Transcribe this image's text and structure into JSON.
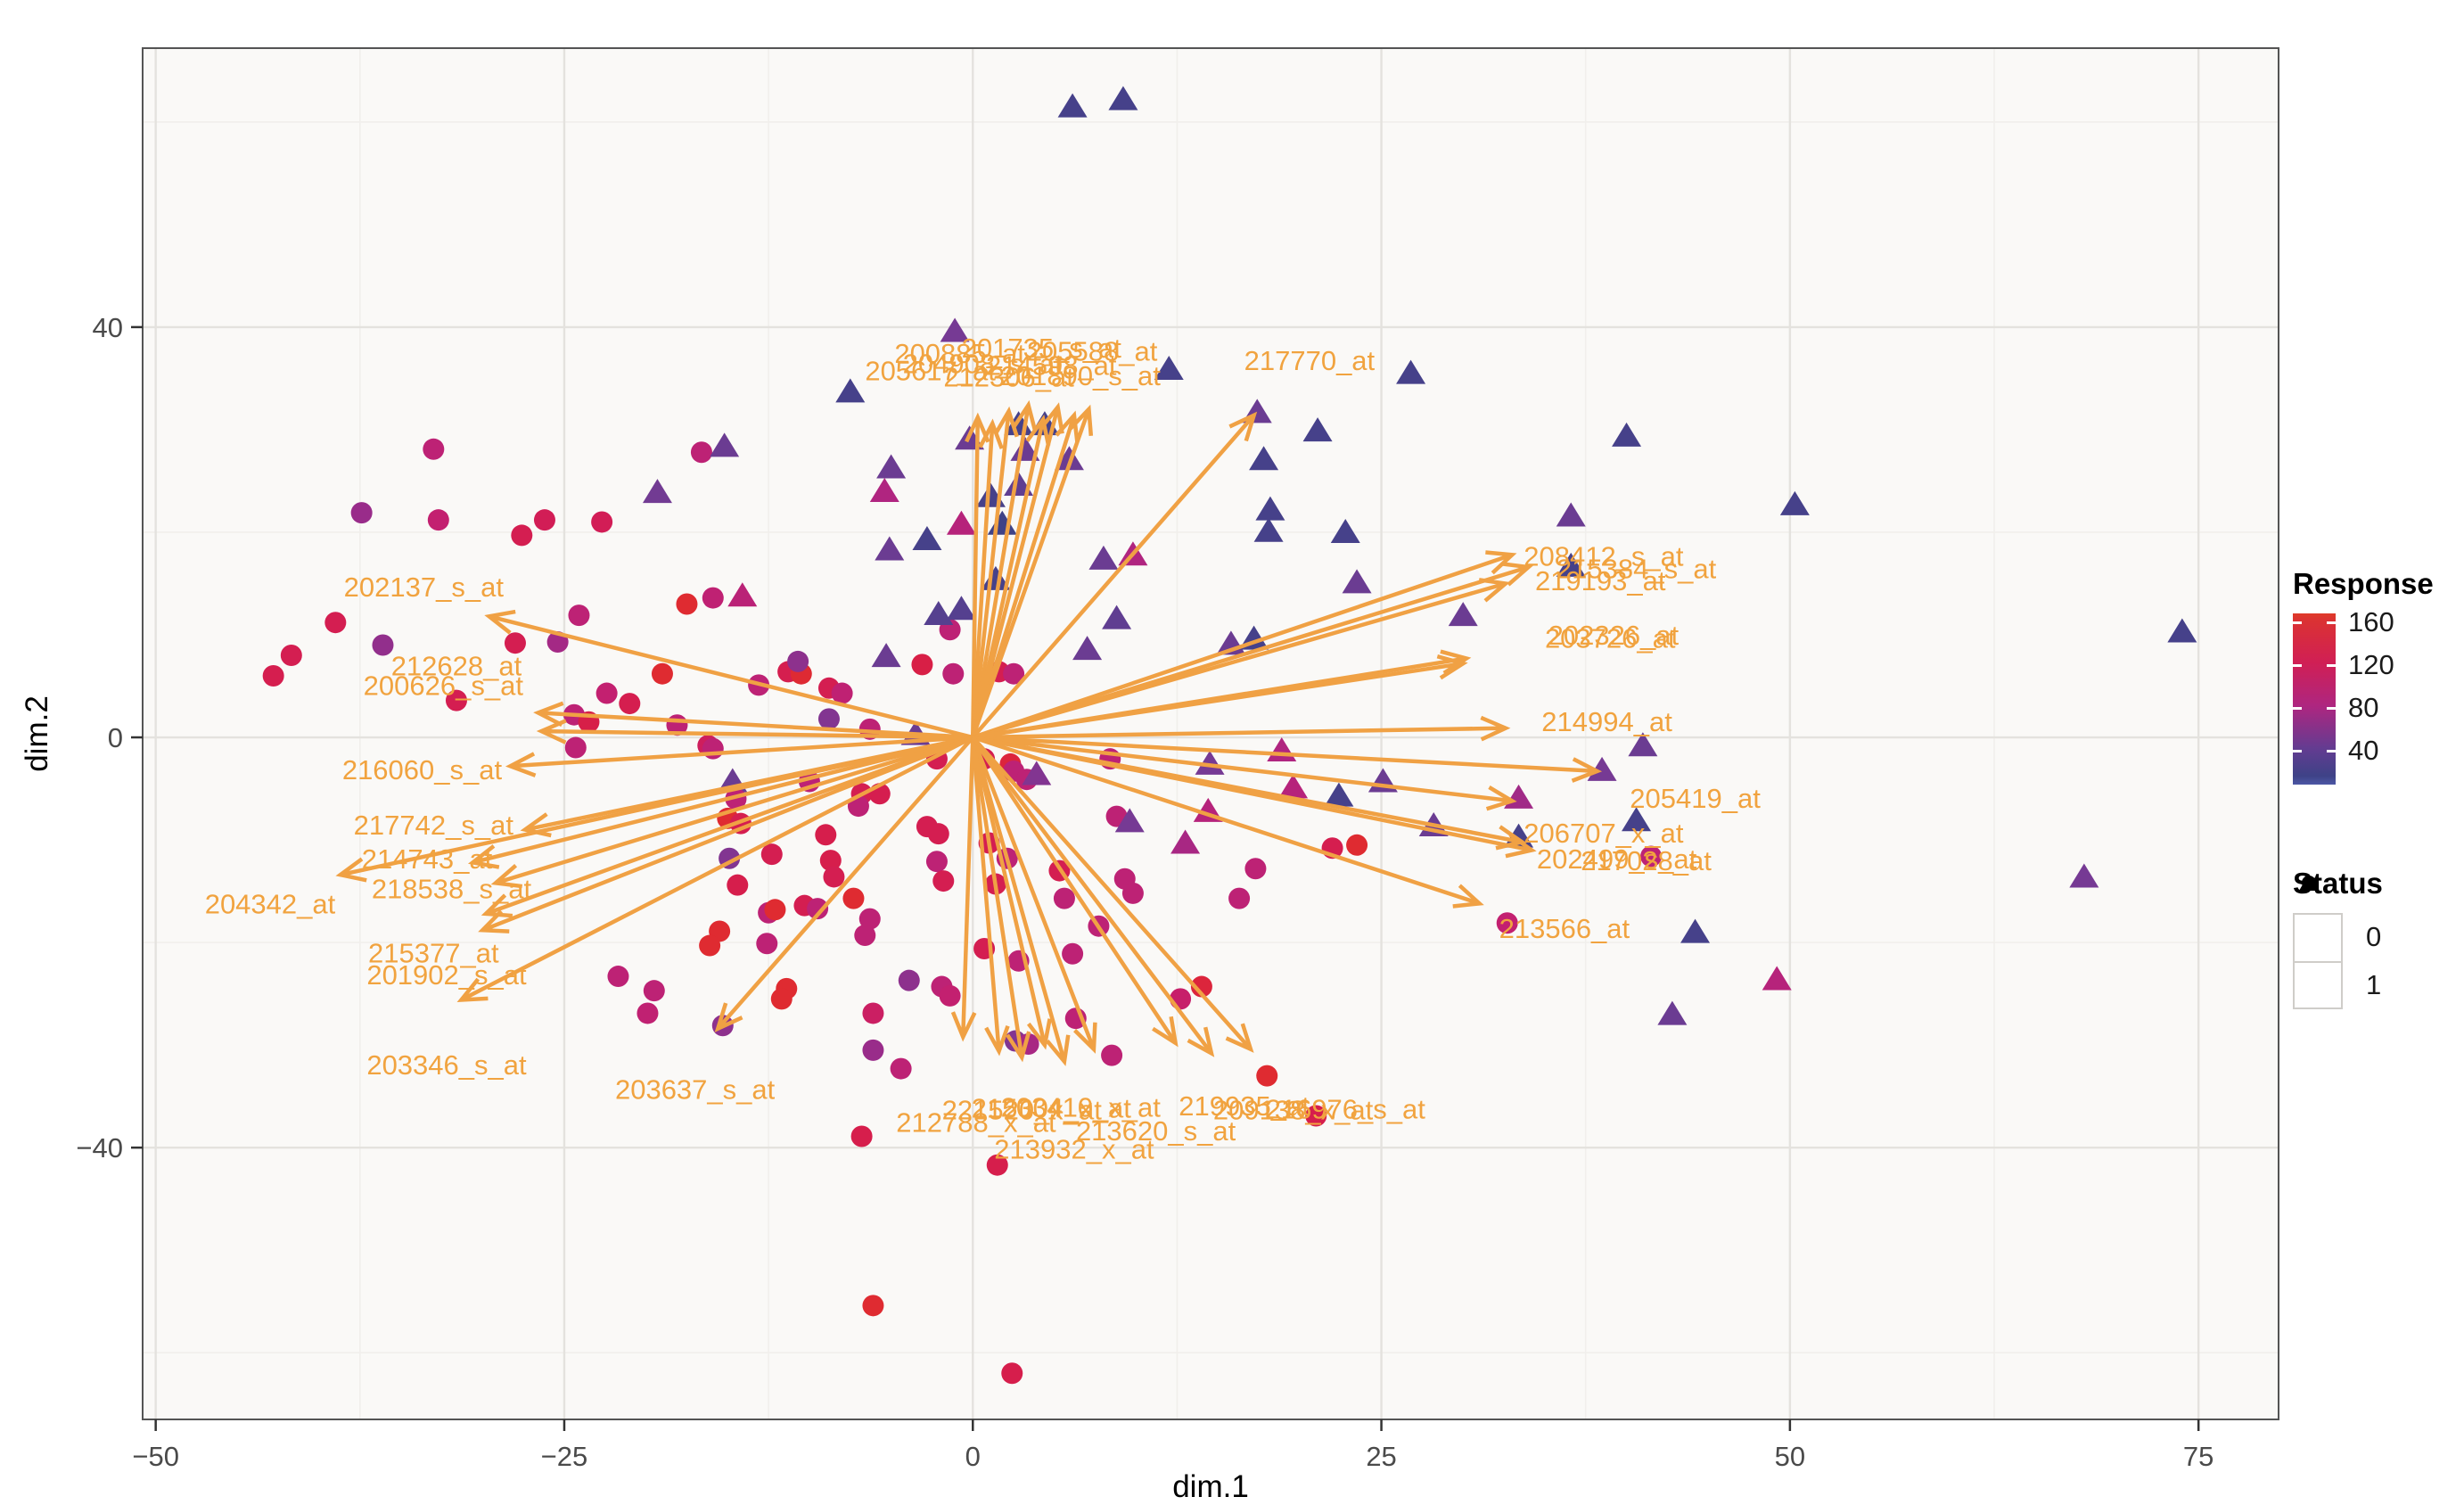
{
  "chart_data": {
    "type": "scatter",
    "subtype": "pca-biplot",
    "xlabel": "dim.1",
    "ylabel": "dim.2",
    "xlim": [
      -50.8,
      79.9
    ],
    "ylim": [
      -66.5,
      67.2
    ],
    "x_ticks": [
      {
        "v": -50,
        "label": "−50"
      },
      {
        "v": -25,
        "label": "−25"
      },
      {
        "v": 0,
        "label": "0"
      },
      {
        "v": 25,
        "label": "25"
      },
      {
        "v": 50,
        "label": "50"
      },
      {
        "v": 75,
        "label": "75"
      }
    ],
    "y_ticks": [
      {
        "v": 40,
        "label": "40"
      },
      {
        "v": 0,
        "label": "0"
      },
      {
        "v": -40,
        "label": "−40"
      }
    ],
    "x_minor": [
      -37.5,
      -12.5,
      12.5,
      37.5,
      62.5
    ],
    "y_minor": [
      60,
      20,
      -20,
      -60
    ],
    "grid": true,
    "legend_position": "right",
    "colors": {
      "arrow": "#F0A144",
      "arrow_label": "#F1A33F",
      "panel_bg": "#FAF9F7",
      "grid_major": "#E4E2DE",
      "grid_minor": "#F1EFEC",
      "panel_border": "#545454",
      "tick_mark": "#333333",
      "tick_text": "#4A4A4A"
    },
    "response_color_stops": [
      [
        8,
        "#3C4186"
      ],
      [
        20,
        "#3F4287"
      ],
      [
        35,
        "#55408F"
      ],
      [
        50,
        "#763A94"
      ],
      [
        65,
        "#992C8A"
      ],
      [
        80,
        "#B02580"
      ],
      [
        95,
        "#C32070"
      ],
      [
        115,
        "#D21D56"
      ],
      [
        130,
        "#D81F46"
      ],
      [
        150,
        "#DF2B31"
      ],
      [
        165,
        "#DF3A29"
      ]
    ],
    "legend": {
      "response": {
        "title": "Response",
        "ticks": [
          {
            "label": "160",
            "f": 0.05
          },
          {
            "label": "120",
            "f": 0.3
          },
          {
            "label": "80",
            "f": 0.55
          },
          {
            "label": "40",
            "f": 0.8
          }
        ],
        "gradient": [
          [
            "0%",
            "#DF3B28"
          ],
          [
            "4%",
            "#DB3233"
          ],
          [
            "29%",
            "#D01F55"
          ],
          [
            "54%",
            "#AE2680"
          ],
          [
            "79%",
            "#633C91"
          ],
          [
            "95%",
            "#3E4287"
          ],
          [
            "100%",
            "#4C58A6"
          ]
        ]
      },
      "status": {
        "title": "Status",
        "items": [
          {
            "shape": "circle",
            "label": "0"
          },
          {
            "shape": "triangle",
            "label": "1"
          }
        ]
      }
    },
    "points_format": [
      "dim1",
      "dim2",
      "response",
      "status(0=circle,1=triangle)"
    ],
    "points": [
      [
        -33,
        28.1,
        90,
        0
      ],
      [
        -37.4,
        21.9,
        65,
        0
      ],
      [
        -32.7,
        21.2,
        95,
        0
      ],
      [
        -27.6,
        19.7,
        120,
        0
      ],
      [
        -26.2,
        21.2,
        115,
        0
      ],
      [
        -22.7,
        21,
        115,
        0
      ],
      [
        -16.6,
        27.8,
        90,
        0
      ],
      [
        -15.2,
        28.4,
        45,
        1
      ],
      [
        -19.3,
        23.9,
        48,
        1
      ],
      [
        -39,
        11.2,
        120,
        0
      ],
      [
        -36.1,
        9,
        62,
        0
      ],
      [
        -41.7,
        8,
        120,
        0
      ],
      [
        -42.8,
        6,
        122,
        0
      ],
      [
        -31.6,
        3.6,
        120,
        0
      ],
      [
        -25.4,
        9.3,
        72,
        0
      ],
      [
        -24.1,
        11.9,
        90,
        0
      ],
      [
        -17.5,
        13,
        150,
        0
      ],
      [
        -15.9,
        13.6,
        92,
        0
      ],
      [
        -14.1,
        13.8,
        88,
        1
      ],
      [
        -19,
        6.2,
        150,
        0
      ],
      [
        -22.4,
        4.3,
        95,
        0
      ],
      [
        -21,
        3.3,
        122,
        0
      ],
      [
        -24.4,
        2.2,
        90,
        0
      ],
      [
        -23.5,
        1.5,
        128,
        0
      ],
      [
        -18.1,
        1.2,
        90,
        0
      ],
      [
        -16.2,
        -0.8,
        110,
        0
      ],
      [
        -24.3,
        -1,
        90,
        0
      ],
      [
        -13.1,
        5.1,
        90,
        0
      ],
      [
        -11.3,
        6.4,
        122,
        0
      ],
      [
        -10.5,
        6.2,
        148,
        0
      ],
      [
        -10.7,
        7.4,
        60,
        0
      ],
      [
        -8.8,
        4.8,
        120,
        0
      ],
      [
        -8,
        4.3,
        92,
        0
      ],
      [
        -28,
        9.2,
        120,
        0
      ],
      [
        -15.9,
        -1.1,
        90,
        0
      ],
      [
        -14.7,
        -4.3,
        45,
        1
      ],
      [
        -14.5,
        -6,
        90,
        0
      ],
      [
        -15,
        -7.9,
        150,
        0
      ],
      [
        -14.2,
        -8.4,
        122,
        0
      ],
      [
        -10,
        -4.3,
        90,
        0
      ],
      [
        -6.8,
        -5.5,
        120,
        0
      ],
      [
        -5.7,
        -5.5,
        122,
        0
      ],
      [
        -12.3,
        -11.4,
        120,
        0
      ],
      [
        -14.9,
        -11.8,
        55,
        0
      ],
      [
        -14.4,
        -14.4,
        124,
        0
      ],
      [
        -12.5,
        -17.1,
        90,
        0
      ],
      [
        -12.1,
        -16.8,
        150,
        0
      ],
      [
        -15.5,
        -18.9,
        150,
        0
      ],
      [
        -21.7,
        -23.3,
        90,
        0
      ],
      [
        -19.5,
        -24.7,
        90,
        0
      ],
      [
        -19.9,
        -26.9,
        93,
        0
      ],
      [
        -11.4,
        -24.5,
        150,
        0
      ],
      [
        -15.3,
        -28.1,
        60,
        0
      ],
      [
        -9,
        -9.5,
        124,
        0
      ],
      [
        -8.7,
        -12,
        124,
        0
      ],
      [
        -8.5,
        -13.6,
        120,
        0
      ],
      [
        -10.3,
        -16.4,
        120,
        0
      ],
      [
        -9.5,
        -16.7,
        90,
        0
      ],
      [
        -7.3,
        -15.7,
        150,
        0
      ],
      [
        -6.3,
        -17.7,
        90,
        0
      ],
      [
        -6.6,
        -19.3,
        90,
        0
      ],
      [
        -16.1,
        -20.3,
        150,
        0
      ],
      [
        -12.6,
        -20.1,
        90,
        0
      ],
      [
        -5.3,
        7.9,
        45,
        1
      ],
      [
        -3.1,
        7.1,
        130,
        0
      ],
      [
        -1.2,
        6.2,
        90,
        0
      ],
      [
        1.6,
        6.4,
        120,
        0
      ],
      [
        2.5,
        6.2,
        90,
        0
      ],
      [
        -8.8,
        1.8,
        55,
        0
      ],
      [
        -6.3,
        0.8,
        90,
        0
      ],
      [
        -3.5,
        0.3,
        45,
        1
      ],
      [
        -2.2,
        -2.1,
        120,
        0
      ],
      [
        0.7,
        -2.1,
        120,
        0
      ],
      [
        2.3,
        -2.6,
        140,
        0
      ],
      [
        2.5,
        -3.3,
        90,
        0
      ],
      [
        3.3,
        -4.1,
        90,
        0
      ],
      [
        3.9,
        -3.6,
        55,
        1
      ],
      [
        -2.8,
        -8.7,
        120,
        0
      ],
      [
        -2.1,
        -9.4,
        120,
        0
      ],
      [
        -7,
        -6.7,
        90,
        0
      ],
      [
        -2.2,
        -12.1,
        90,
        0
      ],
      [
        -1.8,
        -14,
        120,
        0
      ],
      [
        1,
        -10.3,
        120,
        0
      ],
      [
        2.1,
        -11.8,
        90,
        0
      ],
      [
        1.4,
        -14.3,
        120,
        0
      ],
      [
        0.7,
        -20.6,
        120,
        0
      ],
      [
        2.8,
        -21.8,
        90,
        0
      ],
      [
        5.3,
        -13,
        120,
        0
      ],
      [
        5.6,
        -15.7,
        90,
        0
      ],
      [
        7.7,
        -18.4,
        90,
        0
      ],
      [
        6.1,
        -21.1,
        90,
        0
      ],
      [
        8.8,
        -7.7,
        90,
        0
      ],
      [
        9.6,
        -8.2,
        50,
        1
      ],
      [
        13,
        -10.3,
        75,
        1
      ],
      [
        14.4,
        -7.2,
        85,
        1
      ],
      [
        14.5,
        -2.6,
        50,
        1
      ],
      [
        8.4,
        -2.1,
        90,
        0
      ],
      [
        -1.4,
        10.5,
        90,
        0
      ],
      [
        9.3,
        -13.8,
        90,
        0
      ],
      [
        9.8,
        -15.2,
        90,
        0
      ],
      [
        17.3,
        -12.8,
        90,
        0
      ],
      [
        16.3,
        -15.7,
        90,
        0
      ],
      [
        14,
        -24.3,
        140,
        0
      ],
      [
        -0.7,
        20.8,
        85,
        1
      ],
      [
        1.8,
        20.8,
        20,
        1
      ],
      [
        -2.8,
        19.3,
        25,
        1
      ],
      [
        -5.1,
        18.3,
        45,
        1
      ],
      [
        1.4,
        15.4,
        25,
        1
      ],
      [
        8,
        17.4,
        45,
        1
      ],
      [
        9.8,
        17.8,
        80,
        1
      ],
      [
        -2.1,
        12,
        35,
        1
      ],
      [
        -0.7,
        12.5,
        35,
        1
      ],
      [
        7,
        8.6,
        45,
        1
      ],
      [
        8.8,
        11.6,
        40,
        1
      ],
      [
        15.8,
        9.1,
        45,
        1
      ],
      [
        17.2,
        9.6,
        25,
        1
      ],
      [
        18.1,
        20.1,
        25,
        1
      ],
      [
        6.1,
        61.5,
        25,
        1
      ],
      [
        9.2,
        62.2,
        25,
        1
      ],
      [
        -1.1,
        39.6,
        50,
        1
      ],
      [
        26.8,
        35.5,
        25,
        1
      ],
      [
        17.4,
        31.7,
        45,
        1
      ],
      [
        12,
        35.9,
        25,
        1
      ],
      [
        -0.2,
        29.1,
        45,
        1
      ],
      [
        2.8,
        30.5,
        25,
        1
      ],
      [
        4.4,
        30.5,
        25,
        1
      ],
      [
        3.2,
        28,
        45,
        1
      ],
      [
        5.9,
        27.1,
        45,
        1
      ],
      [
        -5,
        26.3,
        45,
        1
      ],
      [
        -5.4,
        24,
        80,
        1
      ],
      [
        1.1,
        23.5,
        25,
        1
      ],
      [
        2.8,
        24.6,
        40,
        1
      ],
      [
        17.8,
        27.1,
        25,
        1
      ],
      [
        18.2,
        22.2,
        25,
        1
      ],
      [
        -7.5,
        33.7,
        25,
        1
      ],
      [
        21.1,
        29.9,
        25,
        1
      ],
      [
        40,
        29.4,
        25,
        1
      ],
      [
        50.3,
        22.7,
        25,
        1
      ],
      [
        36.6,
        21.6,
        45,
        1
      ],
      [
        22.8,
        20,
        25,
        1
      ],
      [
        23.5,
        15.1,
        45,
        1
      ],
      [
        36.6,
        16.7,
        25,
        1
      ],
      [
        30,
        11.9,
        45,
        1
      ],
      [
        18.9,
        -1.3,
        80,
        1
      ],
      [
        19.6,
        -4.9,
        85,
        1
      ],
      [
        22.4,
        -5.7,
        25,
        1
      ],
      [
        25.1,
        -4.3,
        45,
        1
      ],
      [
        28.2,
        -8.6,
        45,
        1
      ],
      [
        33.4,
        -9.7,
        25,
        1
      ],
      [
        33.4,
        -5.9,
        70,
        1
      ],
      [
        40.6,
        -8.1,
        25,
        1
      ],
      [
        38.5,
        -3.2,
        50,
        1
      ],
      [
        41,
        -0.8,
        45,
        1
      ],
      [
        22,
        -10.8,
        122,
        0
      ],
      [
        23.5,
        -10.5,
        150,
        0
      ],
      [
        41.5,
        -11.6,
        90,
        0
      ],
      [
        32.7,
        -18.1,
        95,
        0
      ],
      [
        44.2,
        -19,
        25,
        1
      ],
      [
        49.2,
        -23.6,
        85,
        1
      ],
      [
        42.8,
        -27,
        45,
        1
      ],
      [
        74,
        10.3,
        25,
        1
      ],
      [
        68,
        -13.6,
        50,
        1
      ],
      [
        -11.7,
        -25.5,
        150,
        0
      ],
      [
        -6.1,
        -26.9,
        105,
        0
      ],
      [
        -6.1,
        -30.5,
        65,
        0
      ],
      [
        -4.4,
        -32.3,
        90,
        0
      ],
      [
        -1.9,
        -24.3,
        90,
        0
      ],
      [
        -1.4,
        -25.2,
        95,
        0
      ],
      [
        -3.9,
        -23.7,
        60,
        0
      ],
      [
        2.6,
        -29.6,
        55,
        0
      ],
      [
        3.4,
        -29.9,
        75,
        0
      ],
      [
        6.3,
        -27.4,
        90,
        0
      ],
      [
        8.5,
        -31,
        90,
        0
      ],
      [
        12.7,
        -25.5,
        100,
        0
      ],
      [
        18,
        -33,
        150,
        0
      ],
      [
        -6.8,
        -38.9,
        124,
        0
      ],
      [
        1.5,
        -41.7,
        124,
        0
      ],
      [
        -6.1,
        -55.4,
        150,
        0
      ],
      [
        2.4,
        -62,
        124,
        0
      ],
      [
        21,
        -36.9,
        124,
        0
      ]
    ],
    "arrows_format": [
      "label",
      "end_x",
      "end_y",
      "label_x",
      "label_y"
    ],
    "arrows": [
      [
        "200885_at",
        0.3,
        31.2,
        -0.8,
        37.4
      ],
      [
        "205617_at",
        1.2,
        30.6,
        -2.6,
        35.7
      ],
      [
        "204908_s_at",
        2.2,
        31.8,
        0.6,
        36.4
      ],
      [
        "201735_s_at",
        3.4,
        32.4,
        4.2,
        37.9
      ],
      [
        "212306_at",
        4.3,
        31.0,
        2.2,
        35.1
      ],
      [
        "205588_at",
        5.2,
        32.2,
        7.3,
        37.6
      ],
      [
        "214598_at",
        6.2,
        31.4,
        4.8,
        36.2
      ],
      [
        "201890_s_at",
        7.1,
        32.0,
        6.6,
        35.2
      ],
      [
        "217770_at",
        17.2,
        31.4,
        20.6,
        36.7
      ],
      [
        "202137_s_at",
        -29.6,
        11.8,
        -33.6,
        14.6
      ],
      [
        "212628_at",
        -26.6,
        2.4,
        -31.6,
        6.9
      ],
      [
        "200626_s_at",
        -26.4,
        0.6,
        -32.4,
        5.0
      ],
      [
        "216060_s_at",
        -28.3,
        -2.8,
        -33.7,
        -3.2
      ],
      [
        "217742_s_at",
        -27.4,
        -9.0,
        -33.0,
        -8.6
      ],
      [
        "214743_at",
        -30.6,
        -12.2,
        -33.4,
        -11.9
      ],
      [
        "218538_s_at",
        -29.2,
        -14.2,
        -31.9,
        -14.8
      ],
      [
        "204342_at",
        -38.7,
        -13.4,
        -43.0,
        -16.3
      ],
      [
        "215377_at",
        -29.8,
        -17.2,
        -33.0,
        -21.1
      ],
      [
        "201902_s_at",
        -30.0,
        -18.8,
        -32.2,
        -23.2
      ],
      [
        "203346_s_at",
        -31.3,
        -25.6,
        -32.2,
        -32.0
      ],
      [
        "203637_s_at",
        -15.6,
        -28.4,
        -17.0,
        -34.4
      ],
      [
        "208412_s_at",
        33.0,
        17.8,
        38.6,
        17.6
      ],
      [
        "215384_s_at",
        34.0,
        16.6,
        40.6,
        16.4
      ],
      [
        "219193_at",
        32.6,
        15.0,
        38.4,
        15.2
      ],
      [
        "202326_at",
        30.2,
        7.7,
        39.2,
        9.9
      ],
      [
        "203726_at",
        30.0,
        7.2,
        39.0,
        9.6
      ],
      [
        "214994_at",
        32.6,
        0.9,
        38.8,
        1.5
      ],
      [
        "205419_at",
        38.2,
        -3.3,
        44.2,
        -6.0
      ],
      [
        "206707_x_at",
        33.0,
        -6.2,
        38.6,
        -9.4
      ],
      [
        "202499_s_at",
        33.6,
        -10.2,
        39.4,
        -11.9
      ],
      [
        "217028_at",
        34.2,
        -11.0,
        41.2,
        -12.1
      ],
      [
        "213566_at",
        31.0,
        -16.2,
        36.2,
        -18.7
      ],
      [
        "212788_x_at",
        -0.6,
        -29.2,
        0.2,
        -37.6
      ],
      [
        "221520_x_at",
        1.6,
        -30.6,
        3.0,
        -36.4
      ],
      [
        "215304_x_at",
        4.4,
        -30.0,
        4.8,
        -36.2
      ],
      [
        "203410_x_at",
        5.6,
        -31.6,
        6.6,
        -36.1
      ],
      [
        "213932_x_at",
        3.0,
        -31.2,
        6.2,
        -40.2
      ],
      [
        "213620_s_at",
        7.4,
        -30.4,
        11.2,
        -38.4
      ],
      [
        "219935_at",
        12.4,
        -29.8,
        16.6,
        -36.0
      ],
      [
        "209138_x_at",
        14.6,
        -30.8,
        19.6,
        -36.4
      ],
      [
        "216976_s_at",
        17.0,
        -30.4,
        22.8,
        -36.3
      ]
    ]
  }
}
